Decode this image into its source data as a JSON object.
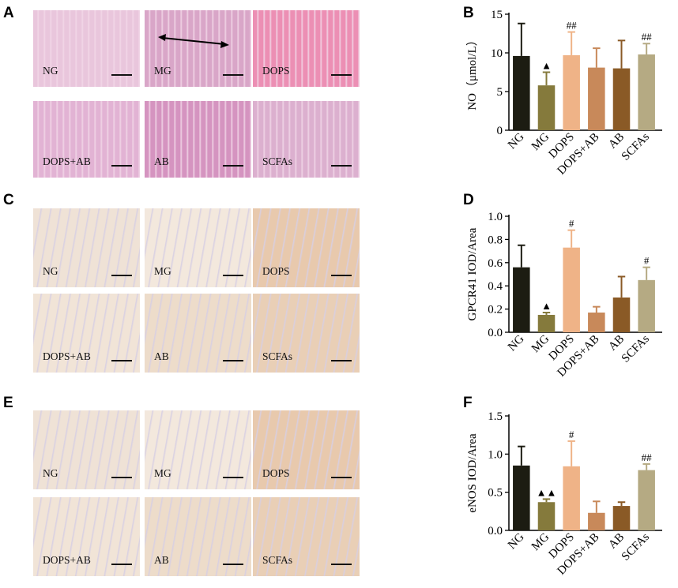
{
  "panels": {
    "A": {
      "letter": "A",
      "tissue": "he",
      "labels": [
        "NG",
        "MG",
        "DOPS",
        "DOPS+AB",
        "AB",
        "SCFAs"
      ]
    },
    "C": {
      "letter": "C",
      "tissue": "ihc",
      "labels": [
        "NG",
        "MG",
        "DOPS",
        "DOPS+AB",
        "AB",
        "SCFAs"
      ]
    },
    "E": {
      "letter": "E",
      "tissue": "ihc",
      "labels": [
        "NG",
        "MG",
        "DOPS",
        "DOPS+AB",
        "AB",
        "SCFAs"
      ]
    }
  },
  "colors": {
    "NG": "#1c1c12",
    "MG": "#857a3c",
    "DOPS": "#efb387",
    "DOPS+AB": "#c8895a",
    "AB": "#8a5a26",
    "SCFAs": "#b5aa83"
  },
  "chart_data": [
    {
      "panel": "B",
      "type": "bar",
      "categories": [
        "NG",
        "MG",
        "DOPS",
        "DOPS+AB",
        "AB",
        "SCFAs"
      ],
      "values": [
        9.6,
        5.8,
        9.7,
        8.1,
        8.0,
        9.8
      ],
      "errors": [
        4.2,
        1.7,
        3.0,
        2.5,
        3.6,
        1.4
      ],
      "annotations": [
        "",
        "▲",
        "##",
        "",
        "",
        "##"
      ],
      "ylabel": "NO（μmol/L）",
      "ylim": [
        0,
        15
      ],
      "yticks": [
        "0",
        "5",
        "10",
        "15"
      ]
    },
    {
      "panel": "D",
      "type": "bar",
      "categories": [
        "NG",
        "MG",
        "DOPS",
        "DOPS+AB",
        "AB",
        "SCFAs"
      ],
      "values": [
        0.56,
        0.15,
        0.73,
        0.17,
        0.3,
        0.45
      ],
      "errors": [
        0.19,
        0.02,
        0.15,
        0.05,
        0.18,
        0.11
      ],
      "annotations": [
        "",
        "▲",
        "#",
        "",
        "",
        "#"
      ],
      "ylabel": "GPCR41 IOD/Area",
      "ylim": [
        0,
        1.0
      ],
      "yticks": [
        "0.0",
        "0.2",
        "0.4",
        "0.6",
        "0.8",
        "1.0"
      ]
    },
    {
      "panel": "F",
      "type": "bar",
      "categories": [
        "NG",
        "MG",
        "DOPS",
        "DOPS+AB",
        "AB",
        "SCFAs"
      ],
      "values": [
        0.85,
        0.37,
        0.84,
        0.23,
        0.32,
        0.79
      ],
      "errors": [
        0.25,
        0.04,
        0.33,
        0.15,
        0.05,
        0.08
      ],
      "annotations": [
        "",
        "▲▲",
        "#",
        "",
        "",
        "##"
      ],
      "ylabel": "eNOS IOD/Area",
      "ylim": [
        0,
        1.5
      ],
      "yticks": [
        "0.0",
        "0.5",
        "1.0",
        "1.5"
      ]
    }
  ]
}
